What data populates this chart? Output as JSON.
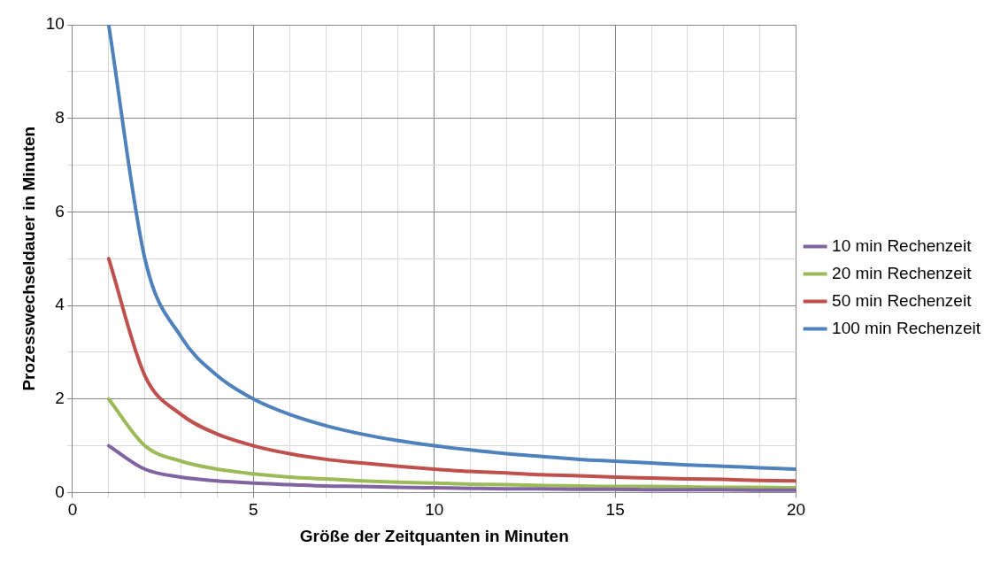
{
  "chart_data": {
    "type": "line",
    "xlabel": "Größe der Zeitquanten in Minuten",
    "ylabel": "Prozesswechseldauer in Minuten",
    "x": [
      1,
      2,
      3,
      4,
      5,
      6,
      7,
      8,
      9,
      10,
      11,
      12,
      13,
      14,
      15,
      16,
      17,
      18,
      19,
      20
    ],
    "series": [
      {
        "name": "10 min Rechenzeit",
        "color": "#8064a2",
        "values": [
          1,
          0.5,
          0.33,
          0.25,
          0.2,
          0.17,
          0.14,
          0.13,
          0.11,
          0.1,
          0.09,
          0.08,
          0.08,
          0.07,
          0.07,
          0.06,
          0.06,
          0.06,
          0.05,
          0.05
        ]
      },
      {
        "name": "20 min Rechenzeit",
        "color": "#9bbb59",
        "values": [
          2,
          1,
          0.67,
          0.5,
          0.4,
          0.33,
          0.29,
          0.25,
          0.22,
          0.2,
          0.18,
          0.17,
          0.15,
          0.14,
          0.13,
          0.13,
          0.12,
          0.11,
          0.11,
          0.1
        ]
      },
      {
        "name": "50 min Rechenzeit",
        "color": "#c0504d",
        "values": [
          5,
          2.5,
          1.67,
          1.25,
          1,
          0.83,
          0.71,
          0.63,
          0.56,
          0.5,
          0.45,
          0.42,
          0.38,
          0.36,
          0.33,
          0.31,
          0.29,
          0.28,
          0.26,
          0.25
        ]
      },
      {
        "name": "100 min Rechenzeit",
        "color": "#4f81bd",
        "values": [
          10,
          5,
          3.33,
          2.5,
          2,
          1.67,
          1.43,
          1.25,
          1.11,
          1,
          0.91,
          0.83,
          0.77,
          0.71,
          0.67,
          0.63,
          0.59,
          0.56,
          0.53,
          0.5
        ]
      }
    ],
    "xlim": [
      0,
      20
    ],
    "xticks": [
      0,
      {
        "value": 1,
        "label": null
      },
      {
        "value": 2,
        "label": null
      },
      {
        "value": 3,
        "label": null
      },
      {
        "value": 4,
        "label": null
      },
      5,
      {
        "value": 6,
        "label": null
      },
      {
        "value": 7,
        "label": null
      },
      {
        "value": 8,
        "label": null
      },
      {
        "value": 9,
        "label": null
      },
      10,
      {
        "value": 11,
        "label": null
      },
      {
        "value": 12,
        "label": null
      },
      {
        "value": 13,
        "label": null
      },
      {
        "value": 14,
        "label": null
      },
      15,
      {
        "value": 16,
        "label": null
      },
      {
        "value": 17,
        "label": null
      },
      {
        "value": 18,
        "label": null
      },
      {
        "value": 19,
        "label": null
      },
      20
    ],
    "ylim": [
      0,
      10
    ],
    "yticks": [
      0,
      {
        "value": 1,
        "label": null
      },
      2,
      {
        "value": 3,
        "label": null
      },
      4,
      {
        "value": 5,
        "label": null
      },
      6,
      {
        "value": 7,
        "label": null
      },
      8,
      {
        "value": 9,
        "label": null
      },
      10
    ],
    "grid": true,
    "legend": "right",
    "marker": "none",
    "line_style": "solid"
  }
}
